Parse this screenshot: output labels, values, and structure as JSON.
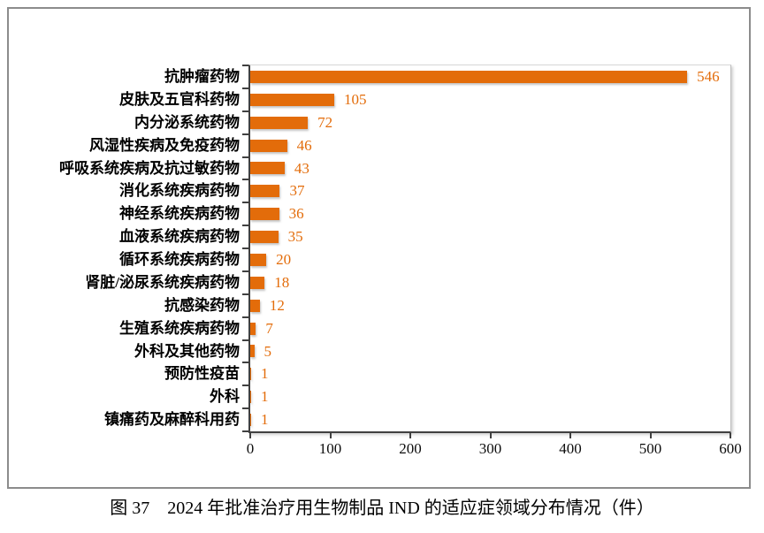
{
  "caption": "图 37　2024 年批准治疗用生物制品 IND 的适应症领域分布情况（件）",
  "chart_data": {
    "type": "bar",
    "orientation": "horizontal",
    "title": "",
    "xlabel": "",
    "ylabel": "",
    "categories": [
      "抗肿瘤药物",
      "皮肤及五官科药物",
      "内分泌系统药物",
      "风湿性疾病及免疫药物",
      "呼吸系统疾病及抗过敏药物",
      "消化系统疾病药物",
      "神经系统疾病药物",
      "血液系统疾病药物",
      "循环系统疾病药物",
      "肾脏/泌尿系统疾病药物",
      "抗感染药物",
      "生殖系统疾病药物",
      "外科及其他药物",
      "预防性疫苗",
      "外科",
      "镇痛药及麻醉科用药"
    ],
    "values": [
      546,
      105,
      72,
      46,
      43,
      37,
      36,
      35,
      20,
      18,
      12,
      7,
      5,
      1,
      1,
      1
    ],
    "xlim": [
      0,
      600
    ],
    "x_ticks": [
      0,
      100,
      200,
      300,
      400,
      500,
      600
    ],
    "grid": false,
    "legend": false,
    "bar_color": "#E36C0A",
    "value_label_color": "#E36C0A",
    "axis_color": "#404040"
  }
}
